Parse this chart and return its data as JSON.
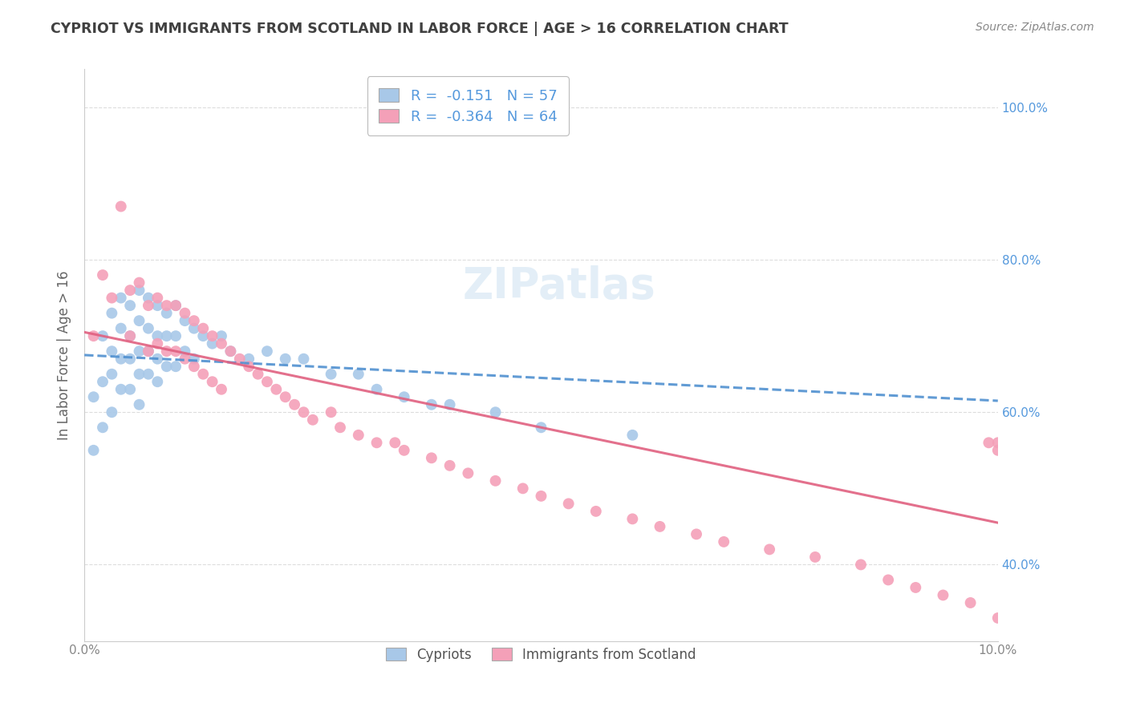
{
  "title": "CYPRIOT VS IMMIGRANTS FROM SCOTLAND IN LABOR FORCE | AGE > 16 CORRELATION CHART",
  "source": "Source: ZipAtlas.com",
  "ylabel": "In Labor Force | Age > 16",
  "xlim": [
    0.0,
    0.1
  ],
  "ylim": [
    0.3,
    1.05
  ],
  "yticks": [
    0.4,
    0.6,
    0.8,
    1.0
  ],
  "ytick_labels": [
    "40.0%",
    "60.0%",
    "80.0%",
    "100.0%"
  ],
  "xticks": [
    0.0,
    0.02,
    0.04,
    0.06,
    0.08,
    0.1
  ],
  "xtick_labels": [
    "0.0%",
    "",
    "",
    "",
    "",
    "10.0%"
  ],
  "cypriot_R": -0.151,
  "cypriot_N": 57,
  "scotland_R": -0.364,
  "scotland_N": 64,
  "cypriot_color": "#a8c8e8",
  "scotland_color": "#f4a0b8",
  "cypriot_line_color": "#5090d0",
  "scotland_line_color": "#e06080",
  "legend_label_1": "Cypriots",
  "legend_label_2": "Immigrants from Scotland",
  "background_color": "#ffffff",
  "grid_color": "#dddddd",
  "title_color": "#404040",
  "axis_label_color": "#666666",
  "right_tick_color": "#5599dd",
  "cypriot_x": [
    0.001,
    0.001,
    0.002,
    0.002,
    0.002,
    0.003,
    0.003,
    0.003,
    0.003,
    0.004,
    0.004,
    0.004,
    0.004,
    0.005,
    0.005,
    0.005,
    0.005,
    0.006,
    0.006,
    0.006,
    0.006,
    0.006,
    0.007,
    0.007,
    0.007,
    0.007,
    0.008,
    0.008,
    0.008,
    0.008,
    0.009,
    0.009,
    0.009,
    0.01,
    0.01,
    0.01,
    0.011,
    0.011,
    0.012,
    0.012,
    0.013,
    0.014,
    0.015,
    0.016,
    0.018,
    0.02,
    0.022,
    0.024,
    0.027,
    0.03,
    0.032,
    0.035,
    0.038,
    0.04,
    0.045,
    0.05,
    0.06
  ],
  "cypriot_y": [
    0.62,
    0.55,
    0.7,
    0.64,
    0.58,
    0.73,
    0.68,
    0.65,
    0.6,
    0.75,
    0.71,
    0.67,
    0.63,
    0.74,
    0.7,
    0.67,
    0.63,
    0.76,
    0.72,
    0.68,
    0.65,
    0.61,
    0.75,
    0.71,
    0.68,
    0.65,
    0.74,
    0.7,
    0.67,
    0.64,
    0.73,
    0.7,
    0.66,
    0.74,
    0.7,
    0.66,
    0.72,
    0.68,
    0.71,
    0.67,
    0.7,
    0.69,
    0.7,
    0.68,
    0.67,
    0.68,
    0.67,
    0.67,
    0.65,
    0.65,
    0.63,
    0.62,
    0.61,
    0.61,
    0.6,
    0.58,
    0.57
  ],
  "scotland_x": [
    0.001,
    0.002,
    0.003,
    0.004,
    0.005,
    0.005,
    0.006,
    0.007,
    0.007,
    0.008,
    0.008,
    0.009,
    0.009,
    0.01,
    0.01,
    0.011,
    0.011,
    0.012,
    0.012,
    0.013,
    0.013,
    0.014,
    0.014,
    0.015,
    0.015,
    0.016,
    0.017,
    0.018,
    0.019,
    0.02,
    0.021,
    0.022,
    0.023,
    0.024,
    0.025,
    0.027,
    0.028,
    0.03,
    0.032,
    0.034,
    0.035,
    0.038,
    0.04,
    0.042,
    0.045,
    0.048,
    0.05,
    0.053,
    0.056,
    0.06,
    0.063,
    0.067,
    0.07,
    0.075,
    0.08,
    0.085,
    0.088,
    0.091,
    0.094,
    0.097,
    0.099,
    0.1,
    0.1,
    0.1
  ],
  "scotland_y": [
    0.7,
    0.78,
    0.75,
    0.87,
    0.76,
    0.7,
    0.77,
    0.74,
    0.68,
    0.75,
    0.69,
    0.74,
    0.68,
    0.74,
    0.68,
    0.73,
    0.67,
    0.72,
    0.66,
    0.71,
    0.65,
    0.7,
    0.64,
    0.69,
    0.63,
    0.68,
    0.67,
    0.66,
    0.65,
    0.64,
    0.63,
    0.62,
    0.61,
    0.6,
    0.59,
    0.6,
    0.58,
    0.57,
    0.56,
    0.56,
    0.55,
    0.54,
    0.53,
    0.52,
    0.51,
    0.5,
    0.49,
    0.48,
    0.47,
    0.46,
    0.45,
    0.44,
    0.43,
    0.42,
    0.41,
    0.4,
    0.38,
    0.37,
    0.36,
    0.35,
    0.56,
    0.56,
    0.55,
    0.33
  ],
  "cy_line_x": [
    0.0,
    0.1
  ],
  "cy_line_y": [
    0.675,
    0.615
  ],
  "sc_line_x": [
    0.0,
    0.1
  ],
  "sc_line_y": [
    0.705,
    0.455
  ]
}
